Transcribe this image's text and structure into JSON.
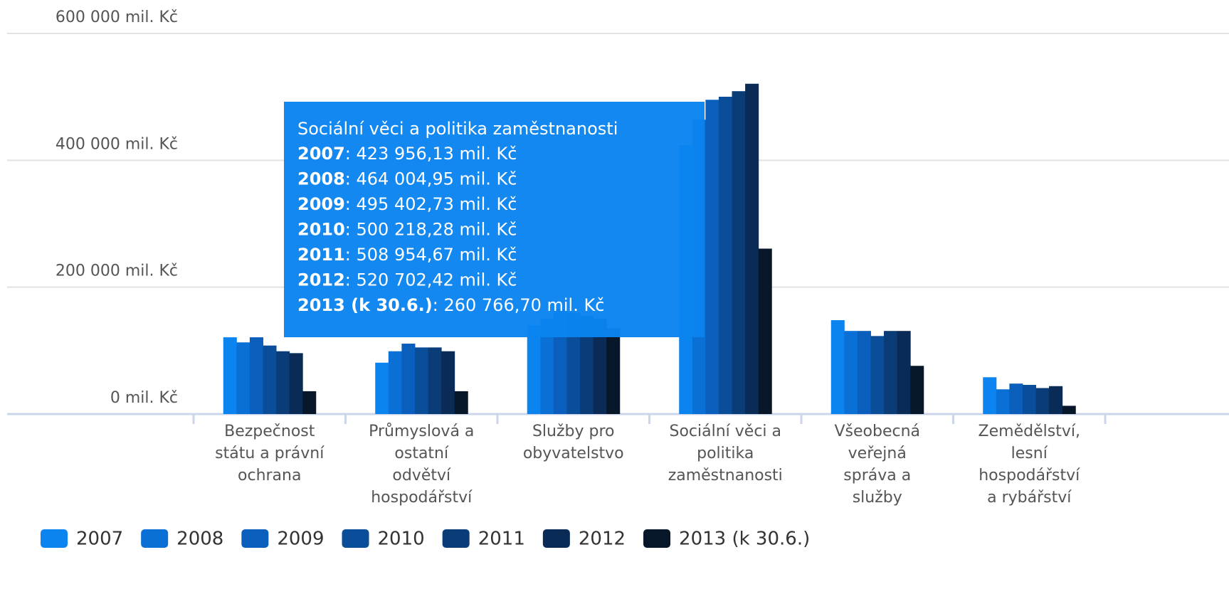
{
  "chart_data": {
    "type": "bar",
    "categories": [
      "Bezpečnost státu a právní ochrana",
      "Průmyslová a ostatní odvětví hospodářství",
      "Služby pro obyvatelstvo",
      "Sociální věci a politika zaměstnanosti",
      "Všeobecná veřejná správa a služby",
      "Zemědělství, lesní hospodářství a rybářství"
    ],
    "series": [
      {
        "name": "2007",
        "color": "#0b84f0",
        "values": [
          121000,
          81000,
          140000,
          423956.13,
          148000,
          58000
        ]
      },
      {
        "name": "2008",
        "color": "#0a70d6",
        "values": [
          113000,
          99000,
          150000,
          464004.95,
          131000,
          39000
        ]
      },
      {
        "name": "2009",
        "color": "#095fbb",
        "values": [
          121000,
          111000,
          165000,
          495402.73,
          131000,
          48000
        ]
      },
      {
        "name": "2010",
        "color": "#0a4d98",
        "values": [
          108000,
          105000,
          160000,
          500218.28,
          123000,
          46000
        ]
      },
      {
        "name": "2011",
        "color": "#0a3c77",
        "values": [
          99000,
          105000,
          155000,
          508954.67,
          131000,
          41000
        ]
      },
      {
        "name": "2012",
        "color": "#0a2b55",
        "values": [
          96000,
          99000,
          150000,
          520702.42,
          131000,
          44000
        ]
      },
      {
        "name": "2013 (k 30.6.)",
        "color": "#08162a",
        "values": [
          36000,
          36000,
          135000,
          260766.7,
          76000,
          13000
        ]
      }
    ],
    "ylim": [
      0,
      600000
    ],
    "yticks": [
      {
        "value": 0,
        "label": "0 mil. Kč"
      },
      {
        "value": 200000,
        "label": "200 000 mil. Kč"
      },
      {
        "value": 400000,
        "label": "400 000 mil. Kč"
      },
      {
        "value": 600000,
        "label": "600 000 mil. Kč"
      }
    ],
    "grid": true,
    "tooltip": {
      "labels": [
        ": 423 956,13 mil. Kč",
        ": 464 004,95 mil. Kč",
        ": 495 402,73 mil. Kč",
        ": 500 218,28 mil. Kč",
        ": 508 954,67 mil. Kč",
        ": 520 702,42 mil. Kč",
        ": 260 766,70 mil. Kč"
      ]
    }
  }
}
